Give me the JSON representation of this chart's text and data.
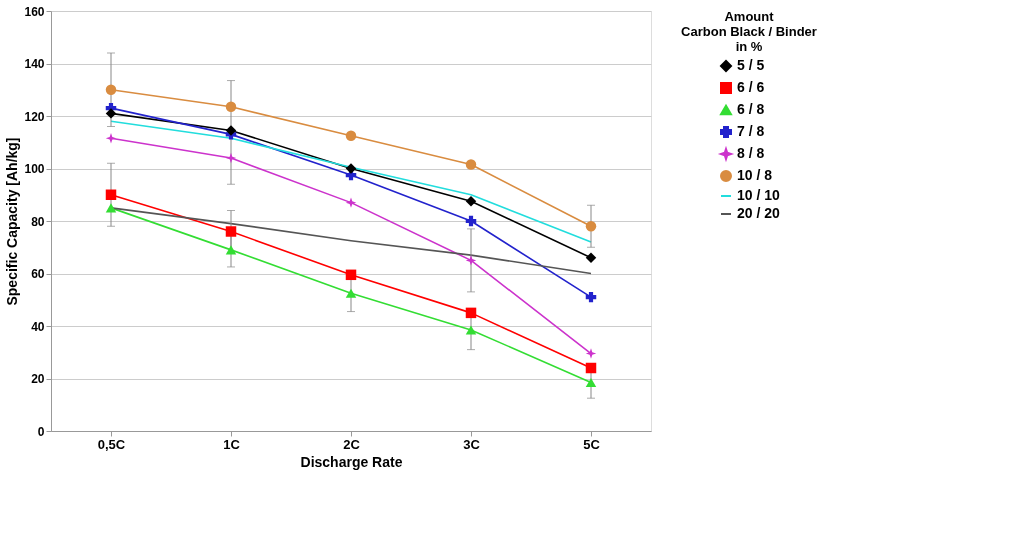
{
  "chart_data": {
    "type": "line",
    "xlabel": "Discharge Rate",
    "ylabel": "Specific Capacity [Ah/kg]",
    "legend_title": "Amount\nCarbon Black / Binder\nin %",
    "categories": [
      "0,5C",
      "1C",
      "2C",
      "3C",
      "5C"
    ],
    "ylim": [
      0,
      160
    ],
    "yticks": [
      0,
      20,
      40,
      60,
      80,
      100,
      120,
      140,
      160
    ],
    "grid": "y",
    "legend": "right",
    "series": [
      {
        "name": "5 / 5",
        "color": "#000000",
        "marker": "diamond",
        "values": [
          121,
          114.5,
          100,
          87.5,
          66
        ]
      },
      {
        "name": "6 / 6",
        "color": "#ff0000",
        "marker": "square",
        "values": [
          90,
          76,
          59.5,
          45,
          24
        ],
        "errors": [
          12,
          8,
          null,
          null,
          null
        ]
      },
      {
        "name": "6 / 8",
        "color": "#33dd33",
        "marker": "triangle",
        "values": [
          85,
          69,
          52.5,
          38.5,
          18.5
        ],
        "errors": [
          null,
          6.5,
          7,
          7.5,
          6
        ]
      },
      {
        "name": "7 / 8",
        "color": "#2222cc",
        "marker": "cross",
        "values": [
          123,
          113,
          97.5,
          80,
          51
        ]
      },
      {
        "name": "8 / 8",
        "color": "#cc33cc",
        "marker": "star",
        "values": [
          111.5,
          104,
          87,
          65,
          29.5
        ],
        "errors": [
          null,
          10,
          null,
          12,
          null
        ]
      },
      {
        "name": "10 / 8",
        "color": "#d98c40",
        "marker": "circle",
        "values": [
          130,
          123.5,
          112.5,
          101.5,
          78
        ],
        "errors": [
          14,
          10,
          null,
          null,
          8
        ]
      },
      {
        "name": "10 / 10",
        "color": "#22dddd",
        "marker": "none",
        "values": [
          118,
          111.5,
          100.5,
          90,
          72
        ]
      },
      {
        "name": "20 / 20",
        "color": "#555555",
        "marker": "none",
        "values": [
          85,
          79,
          72.5,
          67,
          60
        ]
      }
    ]
  }
}
